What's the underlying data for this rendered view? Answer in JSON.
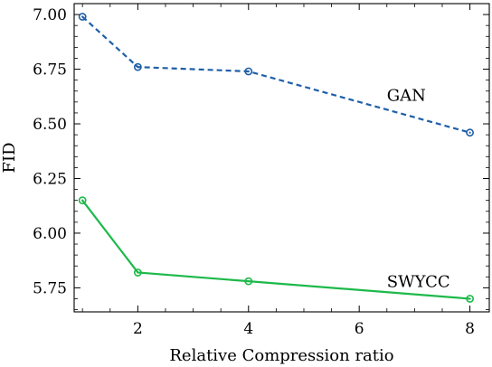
{
  "chart_data": {
    "type": "line",
    "xlabel": "Relative Compression ratio",
    "ylabel": "FID",
    "xlim": [
      0.85,
      8.35
    ],
    "ylim": [
      5.64,
      7.05
    ],
    "xticks": [
      2,
      4,
      6,
      8
    ],
    "yticks": [
      5.75,
      6.0,
      6.25,
      6.5,
      6.75,
      7.0
    ],
    "ytick_labels": [
      "5.75",
      "6.00",
      "6.25",
      "6.50",
      "6.75",
      "7.00"
    ],
    "grid": false,
    "series": [
      {
        "name": "GAN",
        "x": [
          1,
          2,
          4,
          8
        ],
        "values": [
          6.99,
          6.76,
          6.74,
          6.46
        ],
        "color": "#1f5fa8",
        "style": "dashed",
        "marker": "open-circle"
      },
      {
        "name": "SWYCC",
        "x": [
          1,
          2,
          4,
          8
        ],
        "values": [
          6.15,
          5.82,
          5.78,
          5.7
        ],
        "color": "#1db94a",
        "style": "solid",
        "marker": "open-circle"
      }
    ]
  }
}
